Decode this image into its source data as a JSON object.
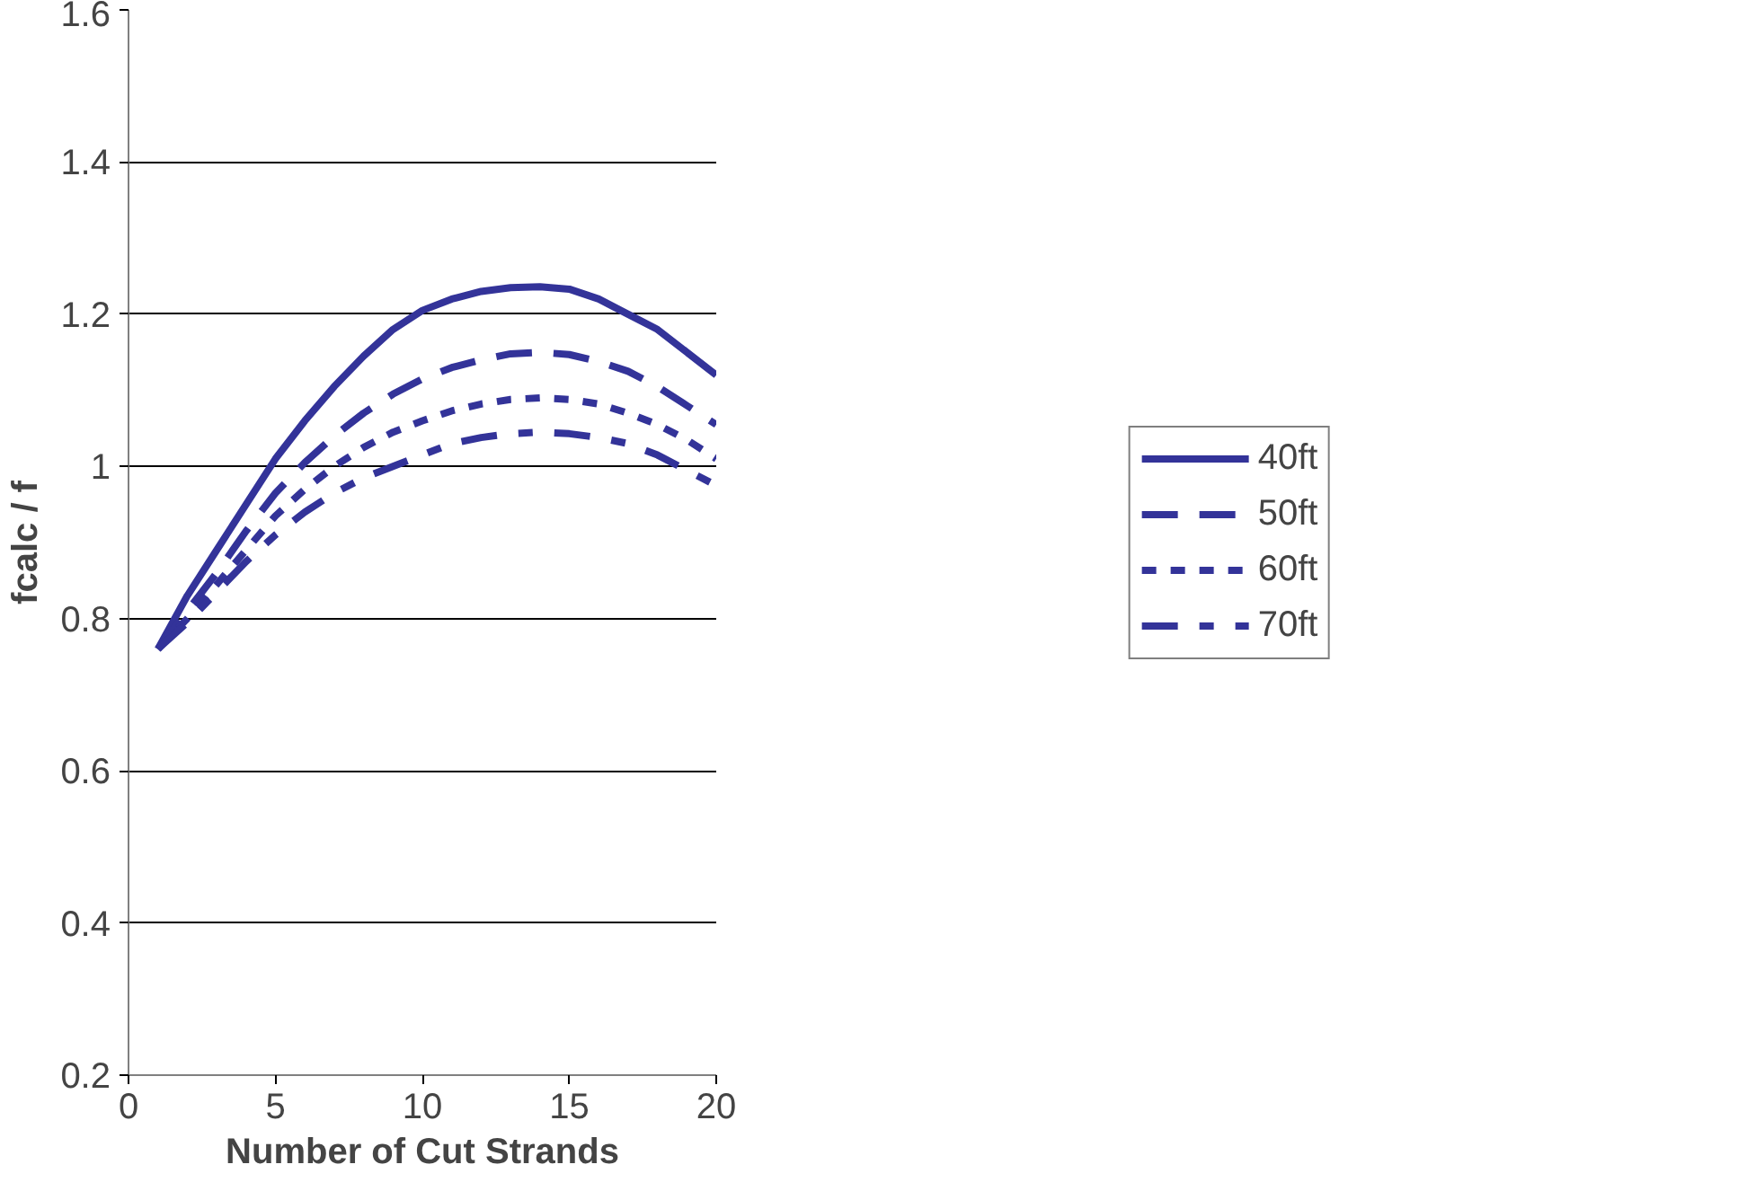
{
  "chart_data": {
    "type": "line",
    "xlabel": "Number of Cut Strands",
    "ylabel": "fcalc / f",
    "x": [
      1,
      2,
      3,
      4,
      5,
      6,
      7,
      8,
      9,
      10,
      11,
      12,
      13,
      14,
      15,
      16,
      17,
      18,
      19,
      20
    ],
    "xlim": [
      0,
      20
    ],
    "xticks": [
      0,
      5,
      10,
      15,
      20
    ],
    "ylim": [
      0.2,
      1.6
    ],
    "yticks": [
      0.2,
      0.4,
      0.6,
      0.8,
      1,
      1.2,
      1.4,
      1.6
    ],
    "grid": "y",
    "legend": "right",
    "marker": "none",
    "series": [
      {
        "name": "40ft",
        "color": "#333399",
        "line_style": "solid",
        "values": [
          0.76,
          0.83,
          0.89,
          0.95,
          1.01,
          1.06,
          1.105,
          1.145,
          1.18,
          1.205,
          1.22,
          1.23,
          1.235,
          1.236,
          1.233,
          1.22,
          1.2,
          1.18,
          1.15,
          1.12
        ]
      },
      {
        "name": "50ft",
        "color": "#333399",
        "line_style": "dashed",
        "values": [
          0.76,
          0.81,
          0.86,
          0.915,
          0.965,
          1.005,
          1.04,
          1.07,
          1.095,
          1.115,
          1.13,
          1.14,
          1.148,
          1.15,
          1.147,
          1.138,
          1.125,
          1.105,
          1.08,
          1.055
        ]
      },
      {
        "name": "60ft",
        "color": "#333399",
        "line_style": "dotted",
        "values": [
          0.76,
          0.8,
          0.845,
          0.89,
          0.935,
          0.97,
          1.0,
          1.025,
          1.045,
          1.06,
          1.073,
          1.082,
          1.088,
          1.09,
          1.088,
          1.082,
          1.07,
          1.055,
          1.035,
          1.01
        ]
      },
      {
        "name": "70ft",
        "color": "#333399",
        "line_style": "dashdot",
        "values": [
          0.76,
          0.795,
          0.835,
          0.875,
          0.91,
          0.94,
          0.965,
          0.985,
          1.0,
          1.015,
          1.03,
          1.038,
          1.043,
          1.045,
          1.043,
          1.038,
          1.03,
          1.015,
          0.995,
          0.975
        ]
      }
    ]
  }
}
